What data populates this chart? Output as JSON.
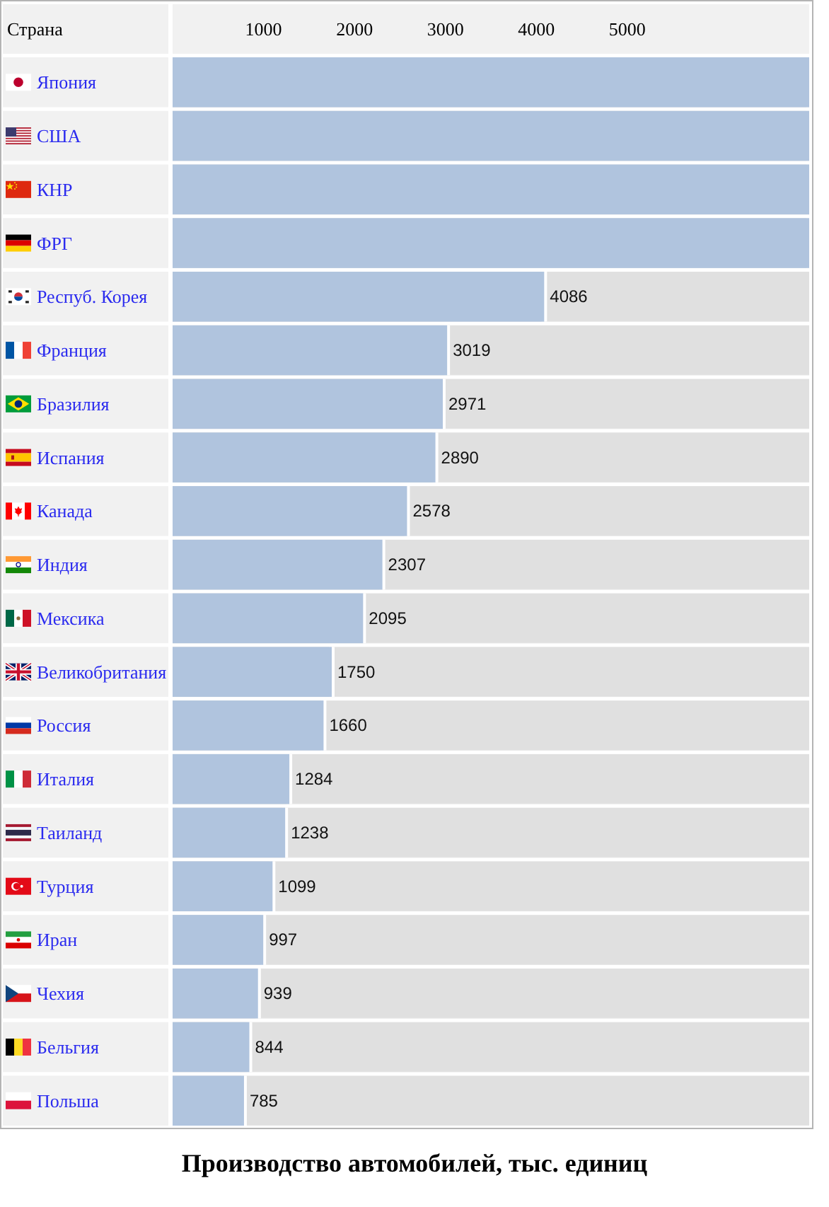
{
  "chart_data": {
    "type": "bar",
    "orientation": "horizontal",
    "title": "Производство автомобилей, тыс. единиц",
    "ylabel": "Страна",
    "categories": [
      "Япония",
      "США",
      "КНР",
      "ФРГ",
      "Респуб. Корея",
      "Франция",
      "Бразилия",
      "Испания",
      "Канада",
      "Индия",
      "Мексика",
      "Великобритания",
      "Россия",
      "Италия",
      "Таиланд",
      "Турция",
      "Иран",
      "Чехия",
      "Бельгия",
      "Польша"
    ],
    "values": [
      7000,
      7000,
      7000,
      7000,
      4086,
      3019,
      2971,
      2890,
      2578,
      2307,
      2095,
      1750,
      1660,
      1284,
      1238,
      1099,
      997,
      939,
      844,
      785
    ],
    "value_labels": [
      null,
      null,
      null,
      null,
      "4086",
      "3019",
      "2971",
      "2890",
      "2578",
      "2307",
      "2095",
      "1750",
      "1660",
      "1284",
      "1238",
      "1099",
      "997",
      "939",
      "844",
      "785"
    ],
    "color": "#b0c4de",
    "xlim": [
      0,
      7000
    ],
    "xticks": [
      1000,
      2000,
      3000,
      4000,
      5000
    ]
  }
}
